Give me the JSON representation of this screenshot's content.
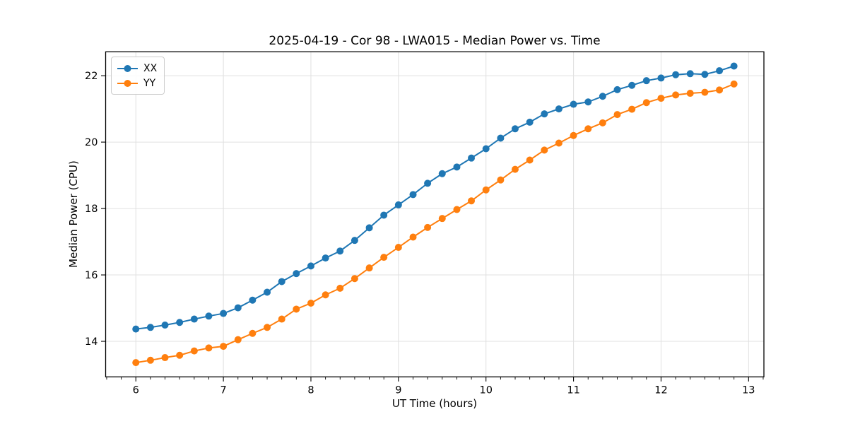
{
  "chart_data": {
    "type": "line",
    "title": "2025-04-19 - Cor 98 - LWA015 - Median Power vs. Time",
    "xlabel": "UT Time (hours)",
    "ylabel": "Median Power (CPU)",
    "grid": true,
    "legend_position": "upper left",
    "xlim": [
      5.655,
      13.175
    ],
    "ylim": [
      12.93,
      22.72
    ],
    "xticks": [
      6,
      7,
      8,
      9,
      10,
      11,
      12,
      13
    ],
    "yticks": [
      14,
      16,
      18,
      20,
      22
    ],
    "x_minor_step": 0.166667,
    "x": [
      6.0,
      6.167,
      6.333,
      6.5,
      6.667,
      6.833,
      7.0,
      7.167,
      7.333,
      7.5,
      7.667,
      7.833,
      8.0,
      8.167,
      8.333,
      8.5,
      8.667,
      8.833,
      9.0,
      9.167,
      9.333,
      9.5,
      9.667,
      9.833,
      10.0,
      10.167,
      10.333,
      10.5,
      10.667,
      10.833,
      11.0,
      11.167,
      11.333,
      11.5,
      11.667,
      11.833,
      12.0,
      12.167,
      12.333,
      12.5,
      12.667,
      12.833
    ],
    "series": [
      {
        "name": "XX",
        "color": "#1f77b4",
        "values": [
          14.37,
          14.42,
          14.49,
          14.57,
          14.67,
          14.76,
          14.84,
          15.01,
          15.24,
          15.48,
          15.8,
          16.04,
          16.27,
          16.51,
          16.72,
          17.04,
          17.42,
          17.8,
          18.11,
          18.42,
          18.76,
          19.05,
          19.25,
          19.52,
          19.8,
          20.12,
          20.4,
          20.6,
          20.85,
          21.0,
          21.14,
          21.21,
          21.38,
          21.58,
          21.71,
          21.85,
          21.93,
          22.03,
          22.06,
          22.04,
          22.15,
          22.29
        ]
      },
      {
        "name": "YY",
        "color": "#ff7f0e",
        "values": [
          13.36,
          13.43,
          13.51,
          13.58,
          13.71,
          13.8,
          13.85,
          14.05,
          14.24,
          14.42,
          14.67,
          14.97,
          15.15,
          15.4,
          15.6,
          15.89,
          16.21,
          16.53,
          16.83,
          17.14,
          17.43,
          17.7,
          17.97,
          18.23,
          18.56,
          18.86,
          19.18,
          19.46,
          19.76,
          19.97,
          20.2,
          20.4,
          20.58,
          20.83,
          20.99,
          21.19,
          21.32,
          21.42,
          21.47,
          21.5,
          21.57,
          21.75
        ]
      }
    ],
    "layout": {
      "plot_x": [
        149.5,
        1081
      ],
      "plot_y": [
        73.3,
        533.3
      ],
      "marker_radius": 5,
      "line_width": 2
    }
  }
}
